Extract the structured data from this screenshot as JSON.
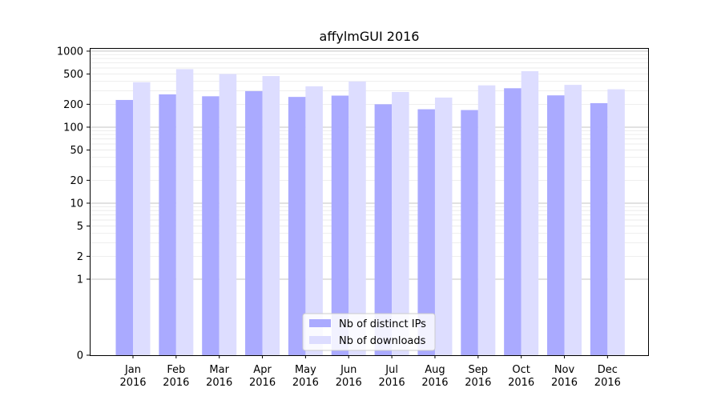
{
  "chart_data": {
    "type": "bar",
    "title": "affylmGUI 2016",
    "xlabel": "",
    "ylabel": "",
    "y_scale": "symlog",
    "ylim": [
      0,
      1100
    ],
    "y_ticks": [
      0,
      1,
      2,
      5,
      10,
      20,
      50,
      100,
      200,
      500,
      1000
    ],
    "y_tick_labels": [
      "0",
      "1",
      "2",
      "5",
      "10",
      "20",
      "50",
      "100",
      "200",
      "500",
      "1000"
    ],
    "grid": true,
    "legend_position": "bottom-center",
    "categories": [
      [
        "Jan",
        "2016"
      ],
      [
        "Feb",
        "2016"
      ],
      [
        "Mar",
        "2016"
      ],
      [
        "Apr",
        "2016"
      ],
      [
        "May",
        "2016"
      ],
      [
        "Jun",
        "2016"
      ],
      [
        "Jul",
        "2016"
      ],
      [
        "Aug",
        "2016"
      ],
      [
        "Sep",
        "2016"
      ],
      [
        "Oct",
        "2016"
      ],
      [
        "Nov",
        "2016"
      ],
      [
        "Dec",
        "2016"
      ]
    ],
    "series": [
      {
        "name": "Nb of distinct IPs",
        "color": "#aaaaff",
        "values": [
          228,
          270,
          255,
          298,
          250,
          260,
          200,
          172,
          168,
          325,
          262,
          207
        ]
      },
      {
        "name": "Nb of downloads",
        "color": "#ddddff",
        "values": [
          390,
          580,
          500,
          470,
          345,
          400,
          290,
          245,
          355,
          545,
          360,
          315
        ]
      }
    ]
  }
}
